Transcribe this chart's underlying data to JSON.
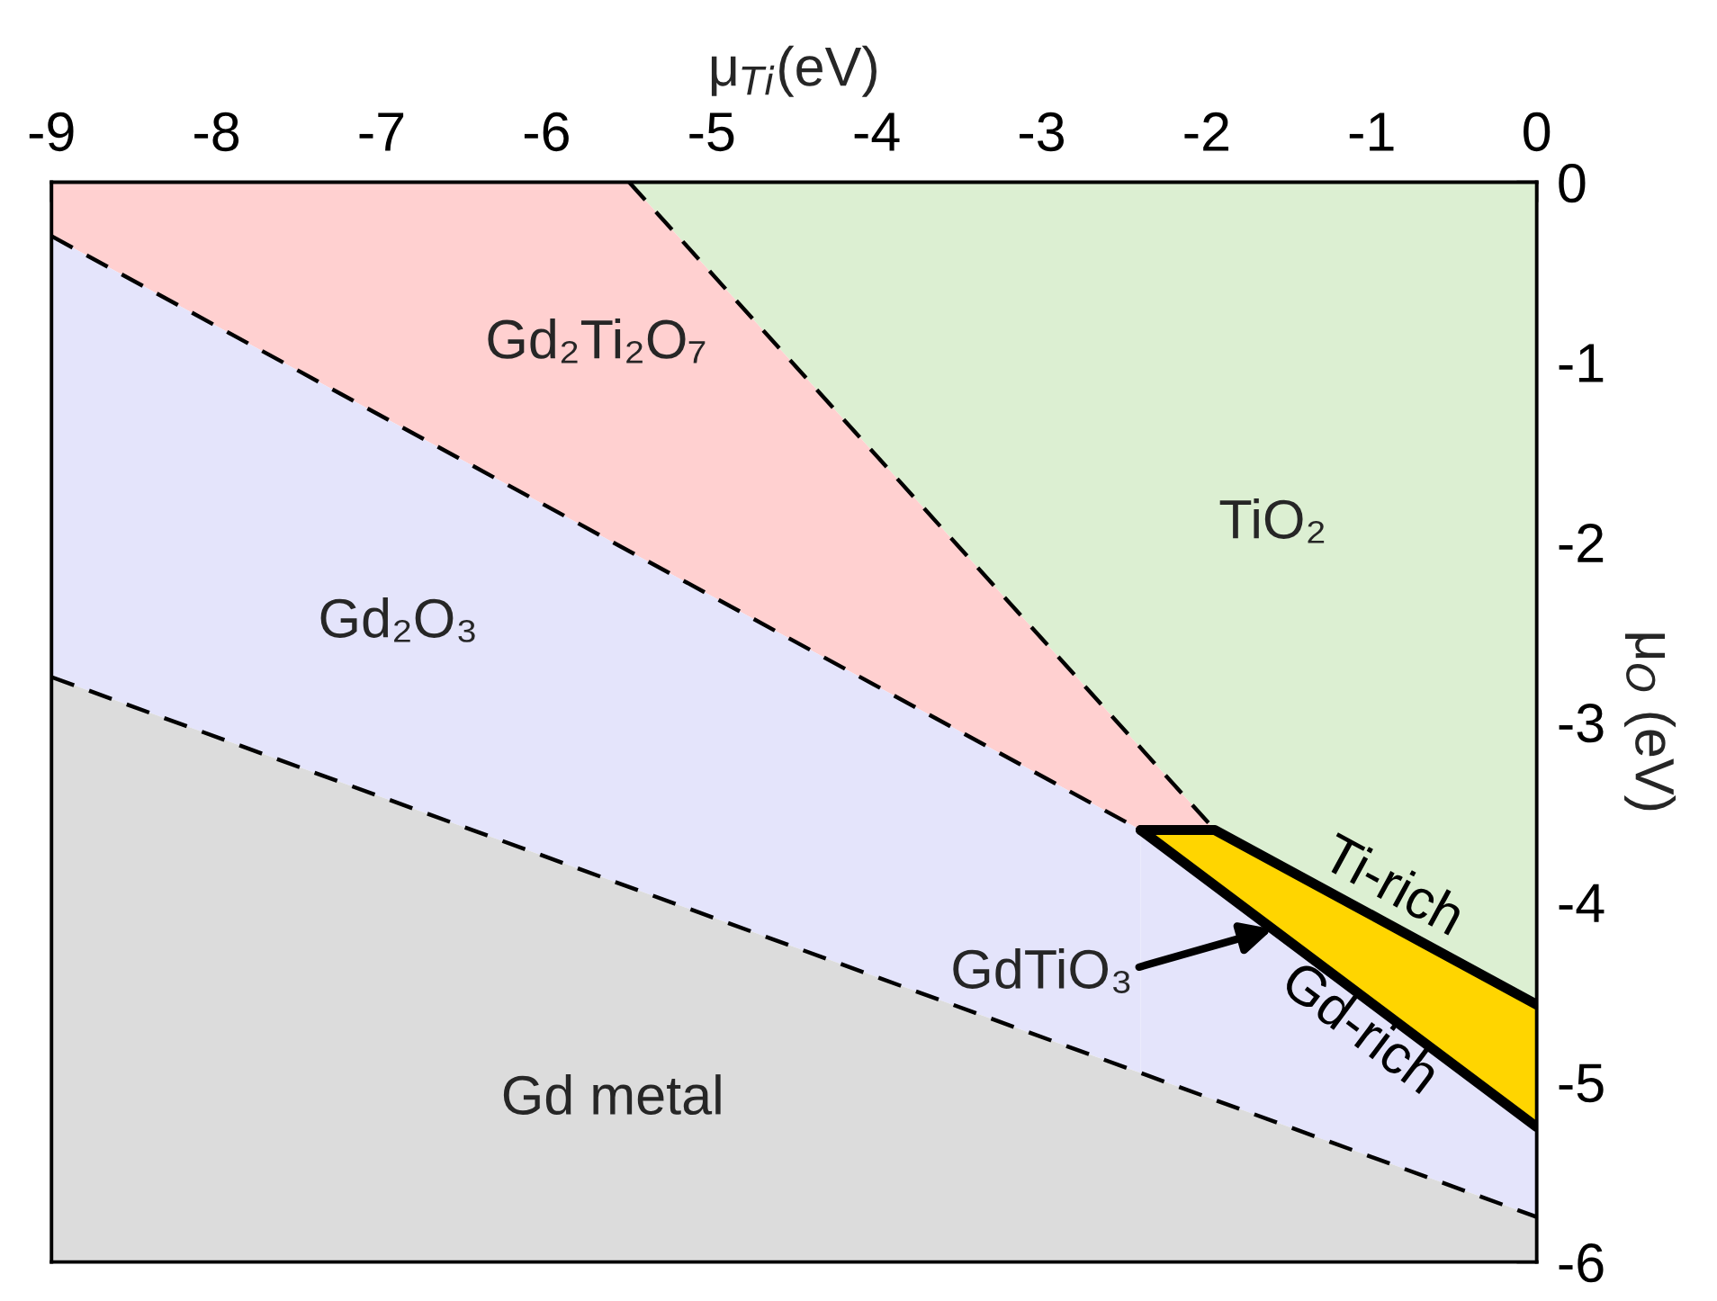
{
  "chart_data": {
    "type": "line",
    "xlabel": "μ$_{Ti}$(eV)",
    "ylabel": "μ$_{O}$ (eV)",
    "xlim": [
      -9,
      0
    ],
    "xticks": [
      -9,
      -8,
      -7,
      -6,
      -5,
      -4,
      -3,
      -2,
      -1,
      0
    ],
    "ylim": [
      -6,
      0
    ],
    "yticks": [
      0,
      -1,
      -2,
      -3,
      -4,
      -5,
      -6
    ],
    "series": [
      {
        "color": "#000000",
        "line_style": "dashed",
        "x": [
          -5.5,
          -1.95
        ],
        "values": [
          0,
          -3.6
        ]
      },
      {
        "color": "#000000",
        "line_style": "dashed",
        "x": [
          -9,
          -2.4
        ],
        "values": [
          -0.3,
          -3.6
        ]
      },
      {
        "color": "#000000",
        "line_style": "dashed",
        "x": [
          -9,
          0
        ],
        "values": [
          -2.75,
          -5.75
        ]
      },
      {
        "name": "Ti-rich",
        "color": "#000000",
        "line_style": "solid",
        "x": [
          -2.4,
          -1.95,
          0
        ],
        "values": [
          -3.6,
          -3.6,
          -4.57
        ]
      },
      {
        "name": "Gd-rich",
        "color": "#000000",
        "line_style": "solid",
        "x": [
          -2.4,
          0
        ],
        "values": [
          -3.6,
          -5.25
        ]
      }
    ],
    "annotations": [
      "TiO₂",
      "Gd₂Ti₂O₇",
      "Gd₂O₃",
      "Gd metal",
      {
        "text": "GdTiO₃",
        "x": -1.6,
        "y": -4.15
      }
    ]
  }
}
